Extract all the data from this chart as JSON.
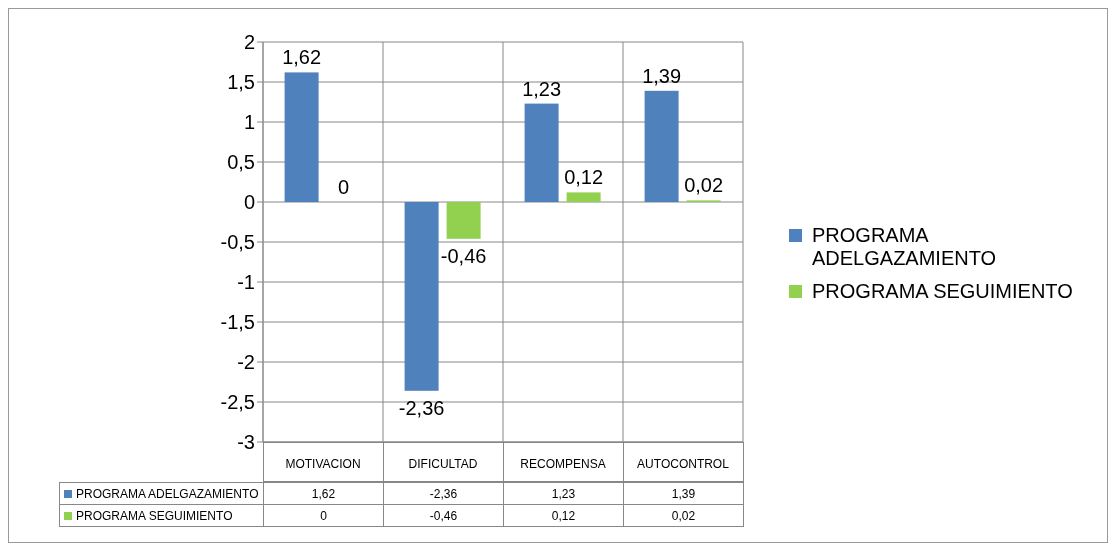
{
  "chart_data": {
    "type": "bar",
    "categories": [
      "MOTIVACION",
      "DIFICULTAD",
      "RECOMPENSA",
      "AUTOCONTROL"
    ],
    "series": [
      {
        "name": "PROGRAMA ADELGAZAMIENTO",
        "color": "#4f81bd",
        "values": [
          1.62,
          -2.36,
          1.23,
          1.39
        ],
        "value_labels": [
          "1,62",
          "-2,36",
          "1,23",
          "1,39"
        ]
      },
      {
        "name": "PROGRAMA SEGUIMIENTO",
        "color": "#92d050",
        "values": [
          0,
          -0.46,
          0.12,
          0.02
        ],
        "value_labels": [
          "0",
          "-0,46",
          "0,12",
          "0,02"
        ]
      }
    ],
    "ylim": [
      -3,
      2
    ],
    "yticks": [
      {
        "value": -3,
        "label": "-3"
      },
      {
        "value": -2.5,
        "label": "-2,5"
      },
      {
        "value": -2,
        "label": "-2"
      },
      {
        "value": -1.5,
        "label": "-1,5"
      },
      {
        "value": -1,
        "label": "-1"
      },
      {
        "value": -0.5,
        "label": "-0,5"
      },
      {
        "value": 0,
        "label": "0"
      },
      {
        "value": 0.5,
        "label": "0,5"
      },
      {
        "value": 1,
        "label": "1"
      },
      {
        "value": 1.5,
        "label": "1,5"
      },
      {
        "value": 2,
        "label": "2"
      }
    ],
    "grid": true,
    "legend": "right"
  }
}
